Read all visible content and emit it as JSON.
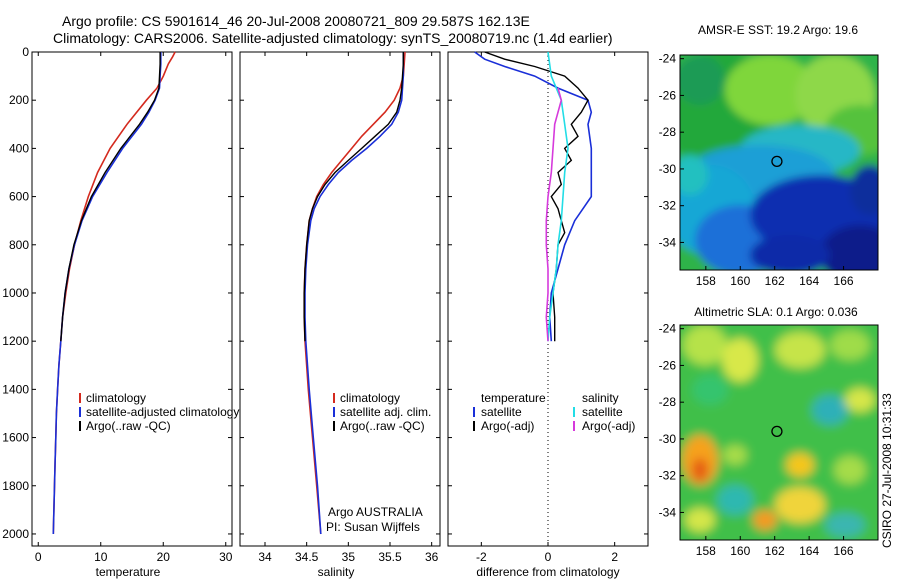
{
  "header": {
    "title_line1": "Argo profile: CS 5901614_46 20-Jul-2008 20080721_809 29.587S 162.13E",
    "title_line2": "Climatology: CARS2006. Satellite-adjusted climatology: synTS_20080719.nc (1.4d earlier)"
  },
  "credit": "CSIRO 27-Jul-2008 10:31:33",
  "colors": {
    "climatology": "#d42a1e",
    "satellite": "#1a2fd8",
    "argo": "#000000",
    "sat_salinity": "#22dde6",
    "argo_salinity": "#d63adc"
  },
  "chart_data": [
    {
      "type": "line",
      "id": "temperature",
      "xlabel": "temperature",
      "ylabel": "",
      "xlim": [
        -1,
        31
      ],
      "ylim": [
        2050,
        0
      ],
      "xticks": [
        0,
        10,
        20,
        30
      ],
      "yticks": [
        0,
        200,
        400,
        600,
        800,
        1000,
        1200,
        1400,
        1600,
        1800,
        2000
      ],
      "legend": [
        "climatology",
        "satellite-adjusted climatology",
        "Argo(..raw -QC)"
      ],
      "series": [
        {
          "name": "climatology",
          "color": "climatology",
          "y": [
            0,
            20,
            50,
            100,
            150,
            200,
            300,
            400,
            500,
            600,
            700,
            800,
            900,
            1000,
            1100,
            1200,
            1300,
            1400,
            1500,
            1600,
            1700,
            1800,
            1900,
            2000
          ],
          "x": [
            21.9,
            21.5,
            20.8,
            20.0,
            19.0,
            17.3,
            14.2,
            11.5,
            9.5,
            8.0,
            6.8,
            5.8,
            5.0,
            4.4,
            3.9,
            3.6,
            3.3,
            3.1,
            2.9,
            2.8,
            2.7,
            2.6,
            2.5,
            2.4
          ]
        },
        {
          "name": "satellite-adjusted climatology",
          "color": "satellite",
          "y": [
            0,
            50,
            100,
            150,
            200,
            250,
            300,
            400,
            500,
            600,
            700,
            800,
            900,
            1000,
            1100,
            1200,
            1300,
            1400,
            1500,
            1600,
            1700,
            1800,
            1900,
            2000
          ],
          "x": [
            19.6,
            19.6,
            19.5,
            19.4,
            18.7,
            17.7,
            16.5,
            13.5,
            11.0,
            8.7,
            7.0,
            5.8,
            4.9,
            4.3,
            3.9,
            3.6,
            3.3,
            3.1,
            2.9,
            2.8,
            2.7,
            2.6,
            2.5,
            2.4
          ]
        },
        {
          "name": "Argo(..raw -QC)",
          "color": "argo",
          "y": [
            0,
            50,
            100,
            150,
            200,
            250,
            300,
            400,
            500,
            600,
            700,
            800,
            900,
            1000,
            1100,
            1200
          ],
          "x": [
            19.5,
            19.5,
            19.4,
            19.3,
            18.6,
            17.5,
            16.2,
            13.2,
            10.7,
            8.5,
            6.9,
            5.7,
            4.9,
            4.3,
            3.9,
            3.6
          ]
        }
      ]
    },
    {
      "type": "line",
      "id": "salinity",
      "xlabel": "salinity",
      "ylabel": "",
      "xlim": [
        33.7,
        36.1
      ],
      "ylim": [
        2050,
        0
      ],
      "xticks": [
        34,
        34.5,
        35,
        35.5,
        36
      ],
      "legend": [
        "climatology",
        "satellite adj. clim.",
        "Argo(..raw -QC)"
      ],
      "annotation": [
        "Argo AUSTRALIA",
        "PI: Susan Wijffels"
      ],
      "series": [
        {
          "name": "climatology",
          "color": "climatology",
          "y": [
            0,
            50,
            100,
            150,
            200,
            250,
            300,
            350,
            400,
            450,
            500,
            550,
            600,
            650,
            700,
            800,
            900,
            1000,
            1100,
            1200,
            1400,
            1600,
            1800,
            2000
          ],
          "x": [
            35.68,
            35.67,
            35.66,
            35.62,
            35.55,
            35.44,
            35.3,
            35.16,
            35.04,
            34.92,
            34.8,
            34.7,
            34.62,
            34.57,
            34.53,
            34.5,
            34.48,
            34.47,
            34.47,
            34.48,
            34.52,
            34.57,
            34.62,
            34.67
          ]
        },
        {
          "name": "satellite adj. clim.",
          "color": "satellite",
          "y": [
            0,
            50,
            100,
            150,
            200,
            250,
            300,
            350,
            400,
            450,
            500,
            550,
            600,
            650,
            700,
            800,
            900,
            1000,
            1100,
            1200,
            1400,
            1600,
            1800,
            2000
          ],
          "x": [
            35.66,
            35.66,
            35.66,
            35.65,
            35.64,
            35.6,
            35.52,
            35.38,
            35.22,
            35.04,
            34.88,
            34.76,
            34.66,
            34.59,
            34.55,
            34.51,
            34.49,
            34.48,
            34.48,
            34.49,
            34.53,
            34.58,
            34.63,
            34.67
          ]
        },
        {
          "name": "Argo(..raw -QC)",
          "color": "argo",
          "y": [
            0,
            50,
            100,
            150,
            200,
            250,
            300,
            350,
            400,
            450,
            500,
            550,
            600,
            650,
            700,
            800,
            900,
            1000,
            1100,
            1200
          ],
          "x": [
            35.66,
            35.66,
            35.65,
            35.64,
            35.62,
            35.58,
            35.48,
            35.32,
            35.16,
            35.0,
            34.84,
            34.72,
            34.63,
            34.57,
            34.53,
            34.5,
            34.48,
            34.47,
            34.47,
            34.48
          ]
        }
      ]
    },
    {
      "type": "line",
      "id": "difference",
      "xlabel": "difference from climatology",
      "ylabel": "",
      "xlim": [
        -3,
        3
      ],
      "ylim": [
        2050,
        0
      ],
      "xticks": [
        -2,
        0,
        2
      ],
      "legend_left_title": "temperature",
      "legend_right_title": "salinity",
      "legend_left": [
        "satellite",
        "Argo(-adj)"
      ],
      "legend_right": [
        "satellite",
        "Argo(-adj)"
      ],
      "series": [
        {
          "name": "temperature satellite",
          "color": "satellite",
          "y": [
            0,
            30,
            60,
            100,
            150,
            200,
            250,
            300,
            400,
            500,
            600,
            700,
            800,
            900,
            1000,
            1100,
            1200
          ],
          "x": [
            -2.2,
            -1.9,
            -1.3,
            -0.4,
            0.3,
            1.2,
            1.3,
            1.2,
            1.3,
            1.3,
            1.3,
            0.8,
            0.5,
            0.3,
            0.1,
            0.05,
            0.1
          ]
        },
        {
          "name": "temperature Argo(-adj)",
          "color": "argo",
          "y": [
            0,
            30,
            60,
            100,
            150,
            200,
            250,
            300,
            350,
            400,
            450,
            500,
            550,
            600,
            650,
            700,
            750,
            800,
            900,
            1000,
            1100,
            1200
          ],
          "x": [
            -1.9,
            -1.3,
            -0.4,
            0.5,
            0.9,
            1.2,
            1.0,
            0.7,
            0.9,
            0.5,
            0.7,
            0.3,
            0.4,
            0.1,
            0.3,
            0.4,
            0.5,
            0.3,
            0.25,
            0.15,
            0.2,
            0.2
          ]
        },
        {
          "name": "salinity satellite",
          "color": "sat_salinity",
          "y": [
            0,
            100,
            200,
            300,
            400,
            500,
            600,
            700,
            800,
            900,
            1000,
            1100,
            1200
          ],
          "x": [
            0.0,
            0.1,
            0.4,
            0.5,
            0.6,
            0.5,
            0.45,
            0.4,
            0.3,
            0.25,
            0.15,
            0.05,
            0.0
          ]
        },
        {
          "name": "salinity Argo(-adj)",
          "color": "argo_salinity",
          "y": [
            150,
            200,
            250,
            300,
            400,
            500,
            600,
            700,
            800,
            900,
            1000,
            1100,
            1200
          ],
          "x": [
            0.3,
            0.4,
            0.3,
            0.2,
            0.15,
            0.1,
            0.0,
            -0.05,
            -0.05,
            0.0,
            0.0,
            -0.05,
            0.0
          ]
        }
      ]
    },
    {
      "type": "heatmap",
      "id": "sst_map",
      "title": "AMSR-E SST: 19.2  Argo: 19.6",
      "xlim": [
        156.5,
        168
      ],
      "ylim": [
        -35.5,
        -23.8
      ],
      "xticks": [
        158,
        160,
        162,
        164,
        166
      ],
      "yticks": [
        -24,
        -26,
        -28,
        -30,
        -32,
        -34
      ],
      "marker": {
        "lon": 162.13,
        "lat": -29.587
      }
    },
    {
      "type": "heatmap",
      "id": "sla_map",
      "title": "Altimetric SLA: 0.1  Argo: 0.036",
      "xlim": [
        156.5,
        168
      ],
      "ylim": [
        -35.5,
        -23.8
      ],
      "xticks": [
        158,
        160,
        162,
        164,
        166
      ],
      "yticks": [
        -24,
        -26,
        -28,
        -30,
        -32,
        -34
      ],
      "marker": {
        "lon": 162.13,
        "lat": -29.587
      }
    }
  ]
}
